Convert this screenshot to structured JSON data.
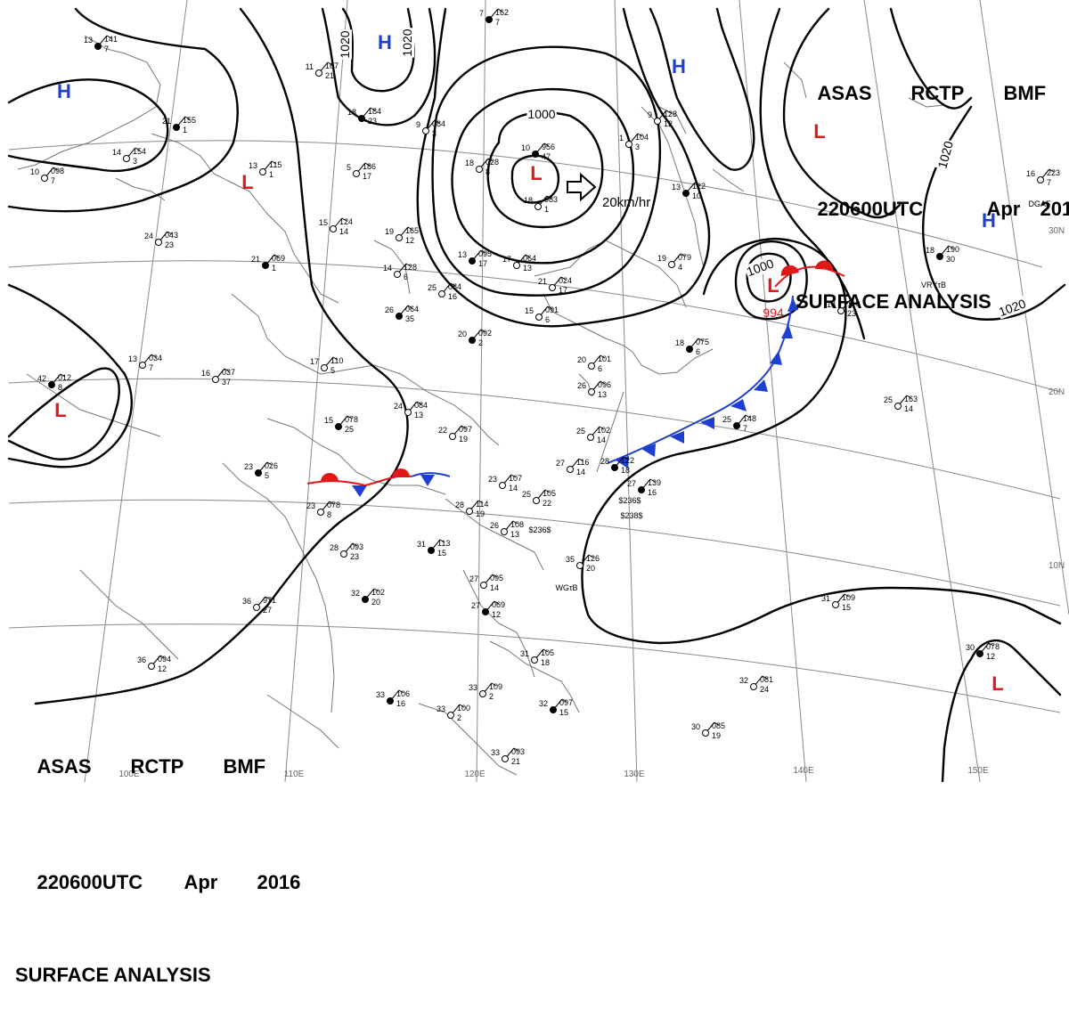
{
  "header": {
    "line1": [
      "ASAS",
      "RCTP",
      "BMF"
    ],
    "line2": [
      "220600UTC",
      "Apr",
      "2016"
    ],
    "line3": "SURFACE ANALYSIS"
  },
  "colors": {
    "high": "#1f3fd0",
    "low": "#e01818",
    "cold_front": "#1f3fd0",
    "warm_front": "#e01818",
    "isobar": "#000000",
    "grid": "#8a8a8a",
    "coast": "#777777"
  },
  "pressure_centers": [
    {
      "type": "H"
    },
    {
      "type": "H"
    },
    {
      "type": "H"
    },
    {
      "type": "H"
    },
    {
      "type": "L"
    },
    {
      "type": "L"
    },
    {
      "type": "L",
      "value": "994"
    },
    {
      "type": "L"
    },
    {
      "type": "L"
    },
    {
      "type": "L"
    }
  ],
  "isobar_labels": [
    "1020",
    "1020",
    "1000",
    "1000",
    "1020",
    "1020"
  ],
  "motion": {
    "text": "20km/hr"
  },
  "lat_labels": [
    "30N",
    "20N",
    "10N"
  ],
  "lon_labels": [
    "100E",
    "110E",
    "120E",
    "130E",
    "140E",
    "150E"
  ],
  "stations": [
    {
      "t": "13",
      "p": "141",
      "d": "7"
    },
    {
      "t": "14",
      "p": "154",
      "d": "3"
    },
    {
      "t": "10",
      "p": "098",
      "d": "7"
    },
    {
      "t": "21",
      "p": "155",
      "d": "1"
    },
    {
      "t": "13",
      "p": "115",
      "d": "1"
    },
    {
      "t": "11",
      "p": "167",
      "d": "21"
    },
    {
      "t": "18",
      "p": "184",
      "d": "23"
    },
    {
      "t": "5",
      "p": "186",
      "d": "17"
    },
    {
      "t": "9",
      "p": "084",
      "d": "3"
    },
    {
      "t": "10",
      "p": "956",
      "d": "47"
    },
    {
      "t": "18",
      "p": "028",
      "d": "8"
    },
    {
      "t": "18",
      "p": "983",
      "d": "1"
    },
    {
      "t": "7",
      "p": "162",
      "d": "7"
    },
    {
      "t": "15",
      "p": "124",
      "d": "14"
    },
    {
      "t": "19",
      "p": "165",
      "d": "12"
    },
    {
      "t": "13",
      "p": "095",
      "d": "17"
    },
    {
      "t": "17",
      "p": "064",
      "d": "13"
    },
    {
      "t": "24",
      "p": "043",
      "d": "23"
    },
    {
      "t": "21",
      "p": "069",
      "d": "1"
    },
    {
      "t": "14",
      "p": "128",
      "d": "6"
    },
    {
      "t": "25",
      "p": "084",
      "d": "16"
    },
    {
      "t": "26",
      "p": "064",
      "d": "35"
    },
    {
      "t": "21",
      "p": "024",
      "d": "17"
    },
    {
      "t": "15",
      "p": "091",
      "d": "6"
    },
    {
      "t": "20",
      "p": "092",
      "d": "2"
    },
    {
      "t": "16",
      "p": "037",
      "d": "37"
    },
    {
      "t": "17",
      "p": "110",
      "d": "5"
    },
    {
      "t": "42",
      "p": "012",
      "d": "8"
    },
    {
      "t": "13",
      "p": "034",
      "d": "7"
    },
    {
      "t": "24",
      "p": "084",
      "d": "13"
    },
    {
      "t": "15",
      "p": "078",
      "d": "25"
    },
    {
      "t": "22",
      "p": "097",
      "d": "19"
    },
    {
      "t": "25",
      "p": "102",
      "d": "14"
    },
    {
      "t": "23",
      "p": "026",
      "d": "5"
    },
    {
      "t": "23",
      "p": "078",
      "d": "8"
    },
    {
      "t": "27",
      "p": "116",
      "d": "14"
    },
    {
      "t": "28",
      "p": "122",
      "d": "18"
    },
    {
      "t": "23",
      "p": "107",
      "d": "14"
    },
    {
      "t": "25",
      "p": "105",
      "d": "22"
    },
    {
      "t": "27",
      "p": "139",
      "d": "16"
    },
    {
      "t": "28",
      "p": "114",
      "d": "19"
    },
    {
      "t": "26",
      "p": "108",
      "d": "13"
    },
    {
      "t": "31",
      "p": "113",
      "d": "15"
    },
    {
      "t": "28",
      "p": "093",
      "d": "23"
    },
    {
      "t": "35",
      "p": "126",
      "d": "20"
    },
    {
      "t": "32",
      "p": "102",
      "d": "20"
    },
    {
      "t": "36",
      "p": "971",
      "d": "27"
    },
    {
      "t": "27",
      "p": "095",
      "d": "14"
    },
    {
      "t": "27",
      "p": "069",
      "d": "12"
    },
    {
      "t": "31",
      "p": "105",
      "d": "18"
    },
    {
      "t": "36",
      "p": "094",
      "d": "12"
    },
    {
      "t": "33",
      "p": "106",
      "d": "16"
    },
    {
      "t": "33",
      "p": "100",
      "d": "2"
    },
    {
      "t": "33",
      "p": "109",
      "d": "2"
    },
    {
      "t": "32",
      "p": "097",
      "d": "15"
    },
    {
      "t": "33",
      "p": "093",
      "d": "21"
    },
    {
      "t": "19",
      "p": "079",
      "d": "4"
    },
    {
      "t": "18",
      "p": "075",
      "d": "6"
    },
    {
      "t": "20",
      "p": "101",
      "d": "6"
    },
    {
      "t": "26",
      "p": "096",
      "d": "13"
    },
    {
      "t": "25",
      "p": "148",
      "d": "7"
    },
    {
      "t": "18",
      "p": "110",
      "d": "23"
    },
    {
      "t": "25",
      "p": "163",
      "d": "14"
    },
    {
      "t": "18",
      "p": "190",
      "d": "30"
    },
    {
      "t": "16",
      "p": "223",
      "d": "7"
    },
    {
      "t": "31",
      "p": "109",
      "d": "15"
    },
    {
      "t": "30",
      "p": "078",
      "d": "12"
    },
    {
      "t": "32",
      "p": "081",
      "d": "24"
    },
    {
      "t": "30",
      "p": "085",
      "d": "19"
    },
    {
      "t": "13",
      "p": "122",
      "d": "10"
    },
    {
      "t": "9",
      "p": "128",
      "d": "12"
    },
    {
      "t": "1",
      "p": "104",
      "d": "3"
    }
  ],
  "station_codes": [
    "$236$",
    "$236$",
    "$238$",
    "WGτB",
    "VRYτB",
    "DGAF"
  ]
}
